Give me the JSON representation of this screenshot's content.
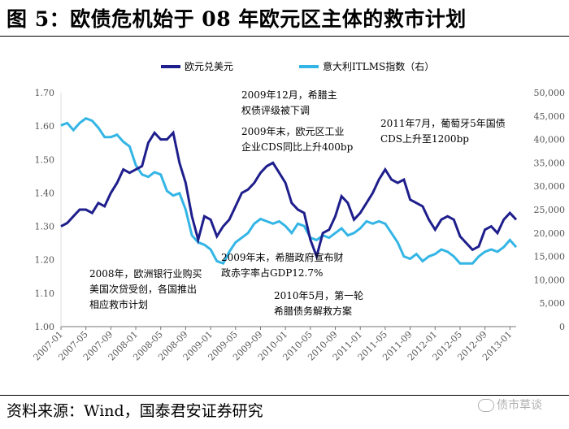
{
  "title": "图 5：欧债危机始于 08 年欧元区主体的救市计划",
  "source": "资料来源：Wind，国泰君安证券研究",
  "watermark": "债市草谈",
  "chart_data": {
    "type": "line",
    "x_start": "2007-01",
    "x_end": "2013-02",
    "legend_position": "top",
    "series": [
      {
        "name": "欧元兑美元",
        "axis": "left",
        "color": "#1e1e8c",
        "points": [
          [
            "2007-01",
            1.3
          ],
          [
            "2007-02",
            1.31
          ],
          [
            "2007-03",
            1.33
          ],
          [
            "2007-04",
            1.35
          ],
          [
            "2007-05",
            1.35
          ],
          [
            "2007-06",
            1.34
          ],
          [
            "2007-07",
            1.37
          ],
          [
            "2007-08",
            1.36
          ],
          [
            "2007-09",
            1.4
          ],
          [
            "2007-10",
            1.43
          ],
          [
            "2007-11",
            1.47
          ],
          [
            "2007-12",
            1.46
          ],
          [
            "2008-01",
            1.47
          ],
          [
            "2008-02",
            1.48
          ],
          [
            "2008-03",
            1.55
          ],
          [
            "2008-04",
            1.58
          ],
          [
            "2008-05",
            1.56
          ],
          [
            "2008-06",
            1.56
          ],
          [
            "2008-07",
            1.58
          ],
          [
            "2008-08",
            1.49
          ],
          [
            "2008-09",
            1.43
          ],
          [
            "2008-10",
            1.33
          ],
          [
            "2008-11",
            1.26
          ],
          [
            "2008-12",
            1.33
          ],
          [
            "2009-01",
            1.32
          ],
          [
            "2009-02",
            1.27
          ],
          [
            "2009-03",
            1.3
          ],
          [
            "2009-04",
            1.32
          ],
          [
            "2009-05",
            1.36
          ],
          [
            "2009-06",
            1.4
          ],
          [
            "2009-07",
            1.41
          ],
          [
            "2009-08",
            1.43
          ],
          [
            "2009-09",
            1.46
          ],
          [
            "2009-10",
            1.48
          ],
          [
            "2009-11",
            1.49
          ],
          [
            "2009-12",
            1.46
          ],
          [
            "2010-01",
            1.43
          ],
          [
            "2010-02",
            1.37
          ],
          [
            "2010-03",
            1.35
          ],
          [
            "2010-04",
            1.34
          ],
          [
            "2010-05",
            1.26
          ],
          [
            "2010-06",
            1.21
          ],
          [
            "2010-07",
            1.28
          ],
          [
            "2010-08",
            1.29
          ],
          [
            "2010-09",
            1.33
          ],
          [
            "2010-10",
            1.39
          ],
          [
            "2010-11",
            1.37
          ],
          [
            "2010-12",
            1.32
          ],
          [
            "2011-01",
            1.34
          ],
          [
            "2011-02",
            1.37
          ],
          [
            "2011-03",
            1.4
          ],
          [
            "2011-04",
            1.44
          ],
          [
            "2011-05",
            1.47
          ],
          [
            "2011-06",
            1.44
          ],
          [
            "2011-07",
            1.43
          ],
          [
            "2011-08",
            1.44
          ],
          [
            "2011-09",
            1.38
          ],
          [
            "2011-10",
            1.37
          ],
          [
            "2011-11",
            1.36
          ],
          [
            "2011-12",
            1.32
          ],
          [
            "2012-01",
            1.29
          ],
          [
            "2012-02",
            1.32
          ],
          [
            "2012-03",
            1.33
          ],
          [
            "2012-04",
            1.32
          ],
          [
            "2012-05",
            1.27
          ],
          [
            "2012-06",
            1.25
          ],
          [
            "2012-07",
            1.23
          ],
          [
            "2012-08",
            1.24
          ],
          [
            "2012-09",
            1.29
          ],
          [
            "2012-10",
            1.3
          ],
          [
            "2012-11",
            1.28
          ],
          [
            "2012-12",
            1.32
          ],
          [
            "2013-01",
            1.34
          ],
          [
            "2013-02",
            1.32
          ]
        ]
      },
      {
        "name": "意大利ITLMS指数（右）",
        "axis": "right",
        "color": "#33b5e5",
        "points": [
          [
            "2007-01",
            43000
          ],
          [
            "2007-02",
            43500
          ],
          [
            "2007-03",
            42000
          ],
          [
            "2007-04",
            43500
          ],
          [
            "2007-05",
            44500
          ],
          [
            "2007-06",
            44000
          ],
          [
            "2007-07",
            42500
          ],
          [
            "2007-08",
            40500
          ],
          [
            "2007-09",
            40500
          ],
          [
            "2007-10",
            41000
          ],
          [
            "2007-11",
            39500
          ],
          [
            "2007-12",
            38500
          ],
          [
            "2008-01",
            34500
          ],
          [
            "2008-02",
            32500
          ],
          [
            "2008-03",
            32000
          ],
          [
            "2008-04",
            33000
          ],
          [
            "2008-05",
            32500
          ],
          [
            "2008-06",
            29000
          ],
          [
            "2008-07",
            28000
          ],
          [
            "2008-08",
            28500
          ],
          [
            "2008-09",
            25000
          ],
          [
            "2008-10",
            19500
          ],
          [
            "2008-11",
            18000
          ],
          [
            "2008-12",
            17500
          ],
          [
            "2009-01",
            16500
          ],
          [
            "2009-02",
            14000
          ],
          [
            "2009-03",
            13500
          ],
          [
            "2009-04",
            16000
          ],
          [
            "2009-05",
            18000
          ],
          [
            "2009-06",
            19000
          ],
          [
            "2009-07",
            20000
          ],
          [
            "2009-08",
            22000
          ],
          [
            "2009-09",
            23000
          ],
          [
            "2009-10",
            22500
          ],
          [
            "2009-11",
            22000
          ],
          [
            "2009-12",
            22500
          ],
          [
            "2010-01",
            21500
          ],
          [
            "2010-02",
            20000
          ],
          [
            "2010-03",
            22000
          ],
          [
            "2010-04",
            21500
          ],
          [
            "2010-05",
            19000
          ],
          [
            "2010-06",
            18500
          ],
          [
            "2010-07",
            19500
          ],
          [
            "2010-08",
            19000
          ],
          [
            "2010-09",
            20000
          ],
          [
            "2010-10",
            21000
          ],
          [
            "2010-11",
            19500
          ],
          [
            "2010-12",
            20000
          ],
          [
            "2011-01",
            21000
          ],
          [
            "2011-02",
            22500
          ],
          [
            "2011-03",
            22000
          ],
          [
            "2011-04",
            22500
          ],
          [
            "2011-05",
            22000
          ],
          [
            "2011-06",
            20000
          ],
          [
            "2011-07",
            18000
          ],
          [
            "2011-08",
            15000
          ],
          [
            "2011-09",
            14500
          ],
          [
            "2011-10",
            15500
          ],
          [
            "2011-11",
            14000
          ],
          [
            "2011-12",
            15000
          ],
          [
            "2012-01",
            15500
          ],
          [
            "2012-02",
            16500
          ],
          [
            "2012-03",
            16000
          ],
          [
            "2012-04",
            15000
          ],
          [
            "2012-05",
            13500
          ],
          [
            "2012-06",
            13500
          ],
          [
            "2012-07",
            13500
          ],
          [
            "2012-08",
            15000
          ],
          [
            "2012-09",
            16000
          ],
          [
            "2012-10",
            16500
          ],
          [
            "2012-11",
            16000
          ],
          [
            "2012-12",
            17000
          ],
          [
            "2013-01",
            18500
          ],
          [
            "2013-02",
            17000
          ]
        ]
      }
    ],
    "y_left": {
      "min": 1.0,
      "max": 1.7,
      "ticks": [
        "1.00",
        "1.10",
        "1.20",
        "1.30",
        "1.40",
        "1.50",
        "1.60",
        "1.70"
      ]
    },
    "y_right": {
      "min": 0,
      "max": 50000,
      "ticks": [
        "0",
        "5,000",
        "10,000",
        "15,000",
        "20,000",
        "25,000",
        "30,000",
        "35,000",
        "40,000",
        "45,000",
        "50,000"
      ]
    },
    "x_ticks": [
      "2007-01",
      "2007-05",
      "2007-09",
      "2008-01",
      "2008-05",
      "2008-09",
      "2009-01",
      "2009-05",
      "2009-09",
      "2010-01",
      "2010-05",
      "2010-09",
      "2011-01",
      "2011-05",
      "2011-09",
      "2012-01",
      "2012-05",
      "2012-09",
      "2013-01"
    ],
    "annotations": [
      {
        "name": "ann-2008",
        "lines": [
          "2008年，欧洲银行业购买",
          "美国次贷受创，各国推出",
          "相应救市计划"
        ]
      },
      {
        "name": "ann-2009-12",
        "lines": [
          "2009年12月，希腊主",
          "权债评级被下调"
        ]
      },
      {
        "name": "ann-2009-end-cds",
        "lines": [
          "2009年末，欧元区工业",
          "企业CDS同比上升400bp"
        ]
      },
      {
        "name": "ann-2009-end-deficit",
        "lines": [
          "2009年末，希腊政府宣布财",
          "政赤字率占GDP12.7%"
        ]
      },
      {
        "name": "ann-2010-05",
        "lines": [
          "2010年5月，第一轮",
          "希腊债务解救方案"
        ]
      },
      {
        "name": "ann-2011-07",
        "lines": [
          "2011年7月，葡萄牙5年国债",
          "CDS上升至1200bp"
        ]
      }
    ]
  }
}
